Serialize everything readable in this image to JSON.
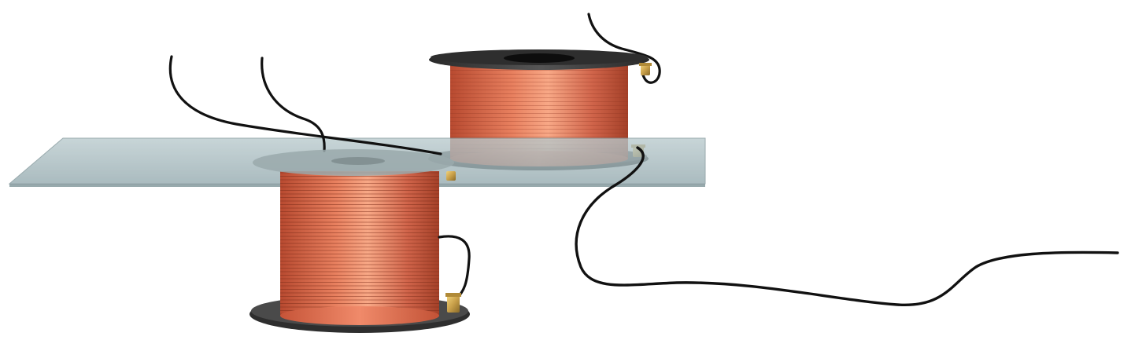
{
  "scene": {
    "description_free": true,
    "colors": {
      "background": "#ffffff",
      "copper_dark": "#b84a30",
      "copper_mid": "#e8805f",
      "copper_light": "#f8a886",
      "spool_flange": "#3c3c3c",
      "glass_plate": "#a9bcc1",
      "wire": "#111111",
      "terminal": "#c9a04a"
    },
    "icons": {
      "primary_coil": "coil-spool-icon",
      "secondary_coil": "coil-spool-icon",
      "plate": "glass-plate-icon",
      "wires": "lead-wire-icon",
      "terminals": "brass-terminal-icon"
    }
  }
}
